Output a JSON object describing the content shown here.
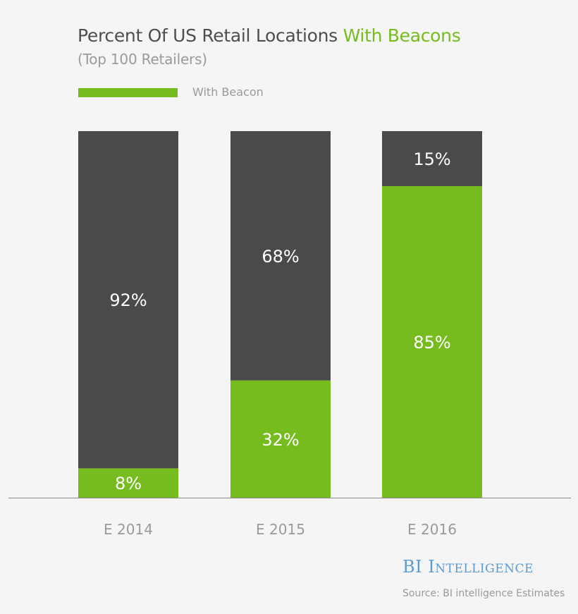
{
  "chart_data": {
    "type": "bar",
    "stacked": true,
    "title": "Percent Of US Retail Locations",
    "title_highlight": "With Beacons",
    "subtitle": "(Top 100 Retailers)",
    "categories": [
      "E 2014",
      "E 2015",
      "E 2016"
    ],
    "series": [
      {
        "name": "With Beacon",
        "values": [
          8,
          32,
          85
        ],
        "labels": [
          "8%",
          "32%",
          "85%"
        ],
        "color": "#77bc1f"
      },
      {
        "values": [
          92,
          68,
          15
        ],
        "labels": [
          "92%",
          "68%",
          "15%"
        ],
        "color": "#4a4a4c"
      }
    ],
    "ylim": [
      0,
      100
    ],
    "grid": false,
    "legend": "top-left"
  },
  "branding": {
    "logo": "BI Intelligence",
    "source": "Source: BI intelligence Estimates"
  },
  "colors": {
    "background": "#f5f5f5",
    "accent": "#77bc1f",
    "dark": "#4a4a4c"
  }
}
